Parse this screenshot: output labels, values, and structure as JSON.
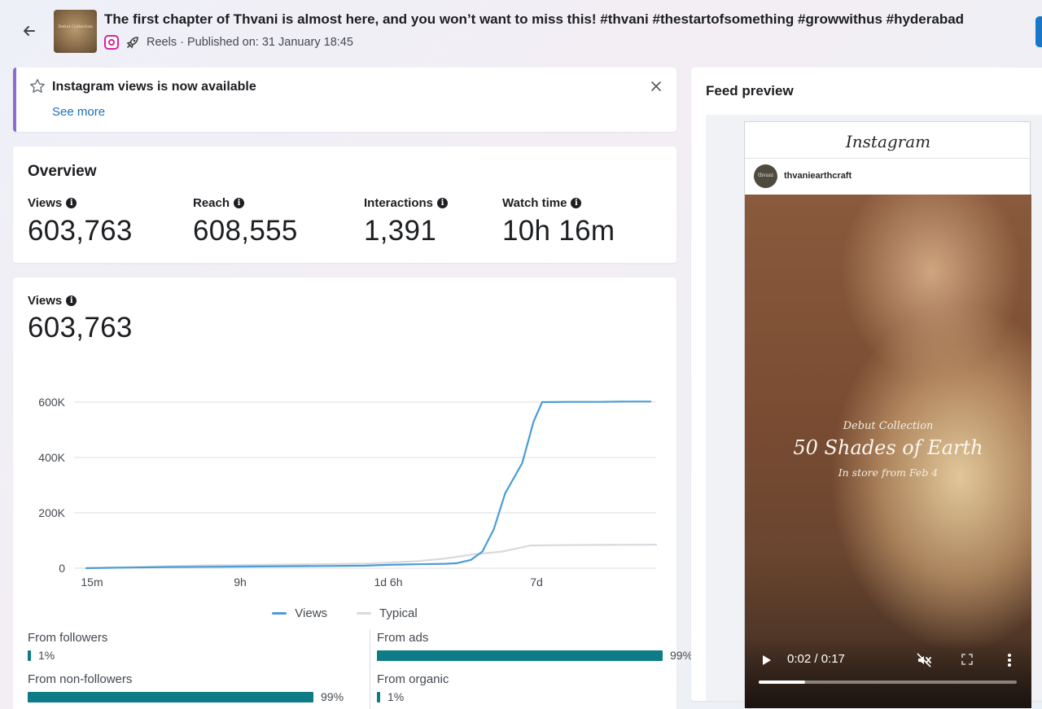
{
  "header": {
    "post_title": "The first chapter of Thvani is almost here, and you won’t want to miss this! #thvani #thestartofsomething #growwithus #hyderabad",
    "meta": "Reels · Published on: 31 January 18:45",
    "thumbnail_text": "Debut Collection",
    "icons": [
      "back-arrow-icon",
      "instagram-icon",
      "rocket-icon"
    ]
  },
  "notice": {
    "title": "Instagram views is now available",
    "link": "See more",
    "accent": "#8f6ad1"
  },
  "overview": {
    "title": "Overview",
    "metrics": [
      {
        "label": "Views",
        "value": "603,763"
      },
      {
        "label": "Reach",
        "value": "608,555"
      },
      {
        "label": "Interactions",
        "value": "1,391"
      },
      {
        "label": "Watch time",
        "value": "10h 16m"
      }
    ]
  },
  "views_section": {
    "label": "Views",
    "value": "603,763"
  },
  "chart_data": {
    "type": "line",
    "x_ticks": [
      "15m",
      "9h",
      "1d 6h",
      "7d"
    ],
    "y_ticks": [
      "600K",
      "400K",
      "200K",
      "0"
    ],
    "ylim": [
      0,
      600000
    ],
    "grid": true,
    "legend_position": "bottom",
    "series": [
      {
        "name": "Views",
        "color": "#4a9cd6",
        "points": [
          [
            0,
            0
          ],
          [
            0.07,
            2000
          ],
          [
            0.14,
            4000
          ],
          [
            0.21,
            5000
          ],
          [
            0.28,
            6000
          ],
          [
            0.35,
            7000
          ],
          [
            0.42,
            8000
          ],
          [
            0.49,
            9000
          ],
          [
            0.53,
            12000
          ],
          [
            0.58,
            14000
          ],
          [
            0.63,
            16000
          ],
          [
            0.65,
            18000
          ],
          [
            0.675,
            30000
          ],
          [
            0.695,
            60000
          ],
          [
            0.715,
            140000
          ],
          [
            0.735,
            270000
          ],
          [
            0.765,
            380000
          ],
          [
            0.785,
            530000
          ],
          [
            0.8,
            600000
          ],
          [
            0.85,
            601000
          ],
          [
            0.9,
            601000
          ],
          [
            0.95,
            602000
          ],
          [
            0.99,
            602000
          ]
        ]
      },
      {
        "name": "Typical",
        "color": "#d8dadf",
        "points": [
          [
            0,
            1000
          ],
          [
            0.1,
            5000
          ],
          [
            0.2,
            10000
          ],
          [
            0.3,
            12000
          ],
          [
            0.4,
            14000
          ],
          [
            0.5,
            17000
          ],
          [
            0.58,
            25000
          ],
          [
            0.63,
            35000
          ],
          [
            0.68,
            50000
          ],
          [
            0.73,
            60000
          ],
          [
            0.78,
            82000
          ],
          [
            0.82,
            83000
          ],
          [
            0.9,
            84000
          ],
          [
            1,
            85000
          ]
        ]
      }
    ]
  },
  "legend": {
    "views": "Views",
    "typical": "Typical",
    "views_color": "#4a9cd6",
    "typical_color": "#d8dadf"
  },
  "breakdown": {
    "followers": {
      "label": "From followers",
      "pct_text": "1%",
      "pct": 1
    },
    "non_followers": {
      "label": "From non-followers",
      "pct_text": "99%",
      "pct": 99
    },
    "ads": {
      "label": "From ads",
      "pct_text": "99%",
      "pct": 99
    },
    "organic": {
      "label": "From organic",
      "pct_text": "1%",
      "pct": 1
    },
    "bar_color": "#0e7c86"
  },
  "feed_preview": {
    "title": "Feed preview",
    "platform_logo": "Instagram",
    "username": "thvaniearthcraft",
    "avatar_text": "thvani",
    "video": {
      "subtitle": "Debut Collection",
      "title": "50 Shades of Earth",
      "date_line": "In store from Feb 4",
      "time": "0:02 / 0:17",
      "progress": 0.18
    }
  }
}
